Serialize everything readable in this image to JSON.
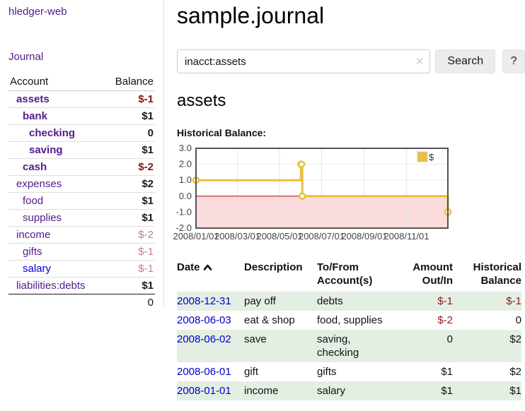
{
  "sidebar": {
    "app_title": "hledger-web",
    "nav": {
      "journal_label": "Journal"
    },
    "accounts_table": {
      "headers": {
        "account": "Account",
        "balance": "Balance"
      },
      "rows": [
        {
          "account": "assets",
          "balance": "$-1",
          "level": 1,
          "bold": true,
          "balance_style": "neg-dark",
          "link_style": "purple"
        },
        {
          "account": "bank",
          "balance": "$1",
          "level": 2,
          "bold": true,
          "balance_style": "pos",
          "link_style": "purple"
        },
        {
          "account": "checking",
          "balance": "0",
          "level": 3,
          "bold": true,
          "balance_style": "pos",
          "link_style": "purple"
        },
        {
          "account": "saving",
          "balance": "$1",
          "level": 3,
          "bold": true,
          "balance_style": "pos",
          "link_style": "purple"
        },
        {
          "account": "cash",
          "balance": "$-2",
          "level": 2,
          "bold": true,
          "balance_style": "neg-dark",
          "link_style": "purple"
        },
        {
          "account": "expenses",
          "balance": "$2",
          "level": 1,
          "bold": false,
          "balance_style": "pos",
          "link_style": "purple"
        },
        {
          "account": "food",
          "balance": "$1",
          "level": 2,
          "bold": false,
          "balance_style": "pos",
          "link_style": "purple"
        },
        {
          "account": "supplies",
          "balance": "$1",
          "level": 2,
          "bold": false,
          "balance_style": "pos",
          "link_style": "purple"
        },
        {
          "account": "income",
          "balance": "$-2",
          "level": 1,
          "bold": false,
          "balance_style": "neg-light",
          "link_style": "purple"
        },
        {
          "account": "gifts",
          "balance": "$-1",
          "level": 2,
          "bold": false,
          "balance_style": "neg-light",
          "link_style": "purple"
        },
        {
          "account": "salary",
          "balance": "$-1",
          "level": 2,
          "bold": false,
          "balance_style": "neg-light",
          "link_style": "blue"
        },
        {
          "account": "liabilities:debts",
          "balance": "$1",
          "level": 1,
          "bold": false,
          "balance_style": "pos",
          "link_style": "purple"
        }
      ],
      "total": "0"
    }
  },
  "main": {
    "title": "sample.journal",
    "search": {
      "query": "inacct:assets",
      "clear_icon": "✕",
      "button_label": "Search",
      "help_label": "?"
    },
    "account_heading": "assets",
    "chart_label": "Historical Balance:",
    "register_table": {
      "headers": [
        "Date",
        "Description",
        "To/From\nAccount(s)",
        "Amount\nOut/In",
        "Historical\nBalance"
      ],
      "sort_column": "Date",
      "sort_direction": "ascending",
      "rows": [
        {
          "date": "2008-12-31",
          "description": "pay off",
          "accounts": "debts",
          "amount": "$-1",
          "balance": "$-1",
          "amount_negative": true,
          "balance_negative": true
        },
        {
          "date": "2008-06-03",
          "description": "eat & shop",
          "accounts": "food, supplies",
          "amount": "$-2",
          "balance": "0",
          "amount_negative": true,
          "balance_negative": false
        },
        {
          "date": "2008-06-02",
          "description": "save",
          "accounts": "saving,\nchecking",
          "amount": "0",
          "balance": "$2",
          "amount_negative": false,
          "balance_negative": false
        },
        {
          "date": "2008-06-01",
          "description": "gift",
          "accounts": "gifts",
          "amount": "$1",
          "balance": "$2",
          "amount_negative": false,
          "balance_negative": false
        },
        {
          "date": "2008-01-01",
          "description": "income",
          "accounts": "salary",
          "amount": "$1",
          "balance": "$1",
          "amount_negative": false,
          "balance_negative": false
        }
      ]
    }
  },
  "chart_data": {
    "type": "line",
    "style": "step",
    "title": "Historical Balance:",
    "series": [
      {
        "name": "$",
        "color": "#e8bf3e",
        "points": [
          [
            "2008-01-01",
            1
          ],
          [
            "2008-06-01",
            2
          ],
          [
            "2008-06-02",
            2
          ],
          [
            "2008-06-03",
            0
          ],
          [
            "2008-12-31",
            -1
          ]
        ]
      }
    ],
    "x_ticks": [
      "2008/01/01",
      "2008/03/01",
      "2008/05/01",
      "2008/07/01",
      "2008/09/01",
      "2008/11/01"
    ],
    "y_ticks": [
      3.0,
      2.0,
      1.0,
      0.0,
      -1.0,
      -2.0
    ],
    "x_range": [
      "2008-01-01",
      "2008-12-31"
    ],
    "ylim": [
      -2,
      3
    ],
    "grid": true,
    "legend": {
      "label": "$",
      "position": "top-right"
    },
    "negative_region_color": "#fbdbdb",
    "zero_line_color": "#a40000",
    "border_color": "#545454",
    "grid_color": "#e7e7e7",
    "tick_label_color": "#444444"
  },
  "colors": {
    "link_purple": "#551a8b",
    "link_blue": "#0000cc",
    "negative_dark": "#7d1616",
    "negative_light": "#c08080",
    "row_green": "#e3efe2",
    "series_yellow": "#e8bf3e"
  }
}
